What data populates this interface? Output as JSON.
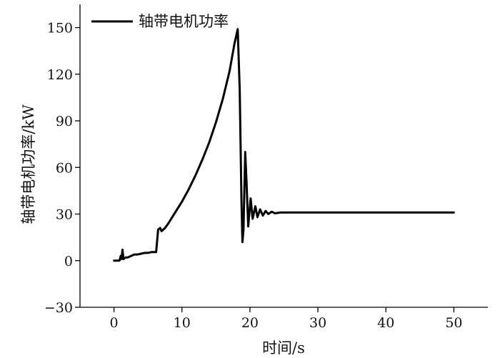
{
  "chart_data": {
    "type": "line",
    "title": "",
    "xlabel": "时间/s",
    "ylabel": "轴带电机功率/kW",
    "xlim": [
      -5,
      55
    ],
    "ylim": [
      -30,
      165
    ],
    "x_ticks": [
      0,
      10,
      20,
      30,
      40,
      50
    ],
    "y_ticks": [
      -30,
      0,
      30,
      60,
      90,
      120,
      150
    ],
    "grid": false,
    "legend_position": "top-left",
    "line_color": "#000000",
    "series": [
      {
        "name": "轴带电机功率",
        "points": [
          [
            0,
            0
          ],
          [
            0.8,
            0
          ],
          [
            1.0,
            3
          ],
          [
            1.1,
            1
          ],
          [
            1.25,
            7
          ],
          [
            1.4,
            1
          ],
          [
            1.7,
            2
          ],
          [
            2.0,
            2
          ],
          [
            2.5,
            3
          ],
          [
            3.0,
            4
          ],
          [
            3.5,
            4
          ],
          [
            4.0,
            4.5
          ],
          [
            4.5,
            5
          ],
          [
            5.0,
            5
          ],
          [
            5.5,
            5.5
          ],
          [
            6.2,
            5.5
          ],
          [
            6.5,
            20
          ],
          [
            6.8,
            21
          ],
          [
            7.0,
            19
          ],
          [
            7.5,
            21
          ],
          [
            8.0,
            24
          ],
          [
            9.0,
            31
          ],
          [
            10.0,
            38
          ],
          [
            11.0,
            46
          ],
          [
            12.0,
            55
          ],
          [
            13.0,
            65
          ],
          [
            14.0,
            76
          ],
          [
            15.0,
            89
          ],
          [
            16.0,
            104
          ],
          [
            17.0,
            122
          ],
          [
            17.7,
            139
          ],
          [
            18.2,
            149
          ],
          [
            18.5,
            110
          ],
          [
            18.75,
            40
          ],
          [
            18.9,
            12
          ],
          [
            19.05,
            20
          ],
          [
            19.3,
            70
          ],
          [
            19.5,
            50
          ],
          [
            19.75,
            22
          ],
          [
            20.1,
            40
          ],
          [
            20.4,
            27
          ],
          [
            20.8,
            35
          ],
          [
            21.1,
            28
          ],
          [
            21.5,
            33
          ],
          [
            21.9,
            29
          ],
          [
            22.3,
            32
          ],
          [
            22.7,
            30
          ],
          [
            23.2,
            31.5
          ],
          [
            23.7,
            30.5
          ],
          [
            24.5,
            31
          ],
          [
            30,
            31
          ],
          [
            40,
            31
          ],
          [
            50,
            31
          ]
        ]
      }
    ]
  }
}
